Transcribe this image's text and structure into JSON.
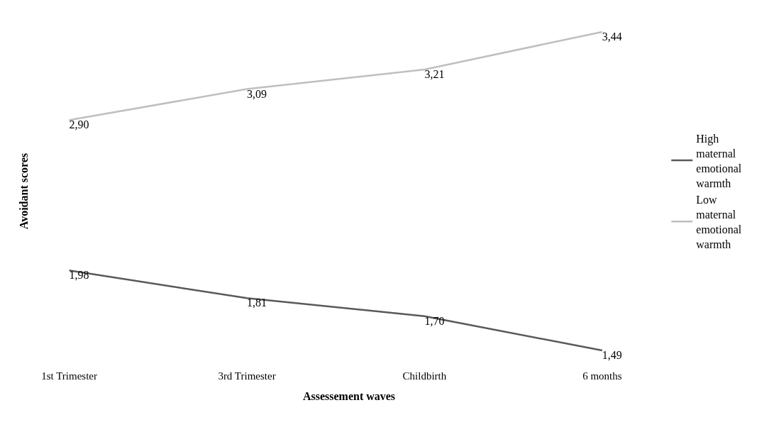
{
  "chart_data": {
    "type": "line",
    "xlabel": "Assessement waves",
    "ylabel": "Avoidant scores",
    "categories": [
      "1st Trimester",
      "3rd Trimester",
      "Childbirth",
      "6 months"
    ],
    "series": [
      {
        "name": "High maternal emotional warmth",
        "color": "#595959",
        "values": [
          1.98,
          1.81,
          1.7,
          1.49
        ],
        "value_labels": [
          "1,98",
          "1,81",
          "1,70",
          "1,49"
        ]
      },
      {
        "name": "Low maternal emotional warmth",
        "color": "#bfbfbf",
        "values": [
          2.9,
          3.09,
          3.21,
          3.44
        ],
        "value_labels": [
          "2,90",
          "3,09",
          "3,21",
          "3,44"
        ]
      }
    ],
    "legend": "right",
    "marker": "none",
    "line_style": "solid"
  }
}
